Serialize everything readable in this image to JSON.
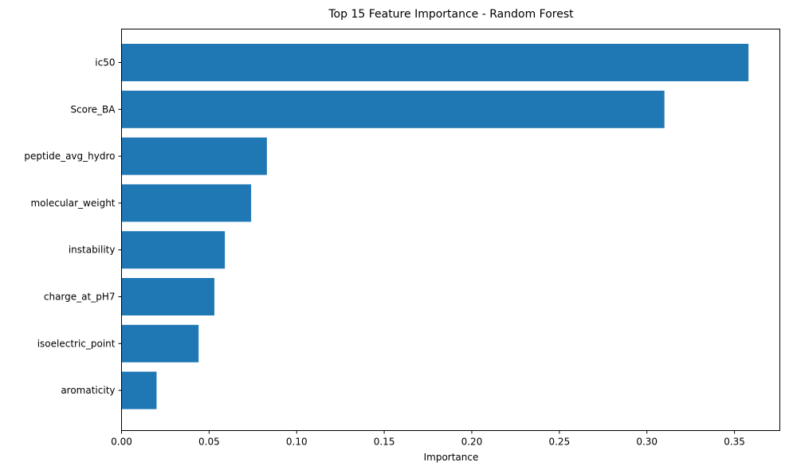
{
  "chart_data": {
    "type": "bar",
    "orientation": "horizontal",
    "title": "Top 15 Feature Importance - Random Forest",
    "xlabel": "Importance",
    "ylabel": "",
    "categories": [
      "ic50",
      "Score_BA",
      "peptide_avg_hydro",
      "molecular_weight",
      "instability",
      "charge_at_pH7",
      "isoelectric_point",
      "aromaticity"
    ],
    "values": [
      0.358,
      0.31,
      0.083,
      0.074,
      0.059,
      0.053,
      0.044,
      0.02
    ],
    "xlim": [
      0,
      0.3759
    ],
    "xticks": [
      0.0,
      0.05,
      0.1,
      0.15,
      0.2,
      0.25,
      0.3,
      0.35
    ],
    "xtick_labels": [
      "0.00",
      "0.05",
      "0.10",
      "0.15",
      "0.20",
      "0.25",
      "0.30",
      "0.35"
    ],
    "bar_color": "#1f77b4",
    "grid": false,
    "legend": "none"
  }
}
